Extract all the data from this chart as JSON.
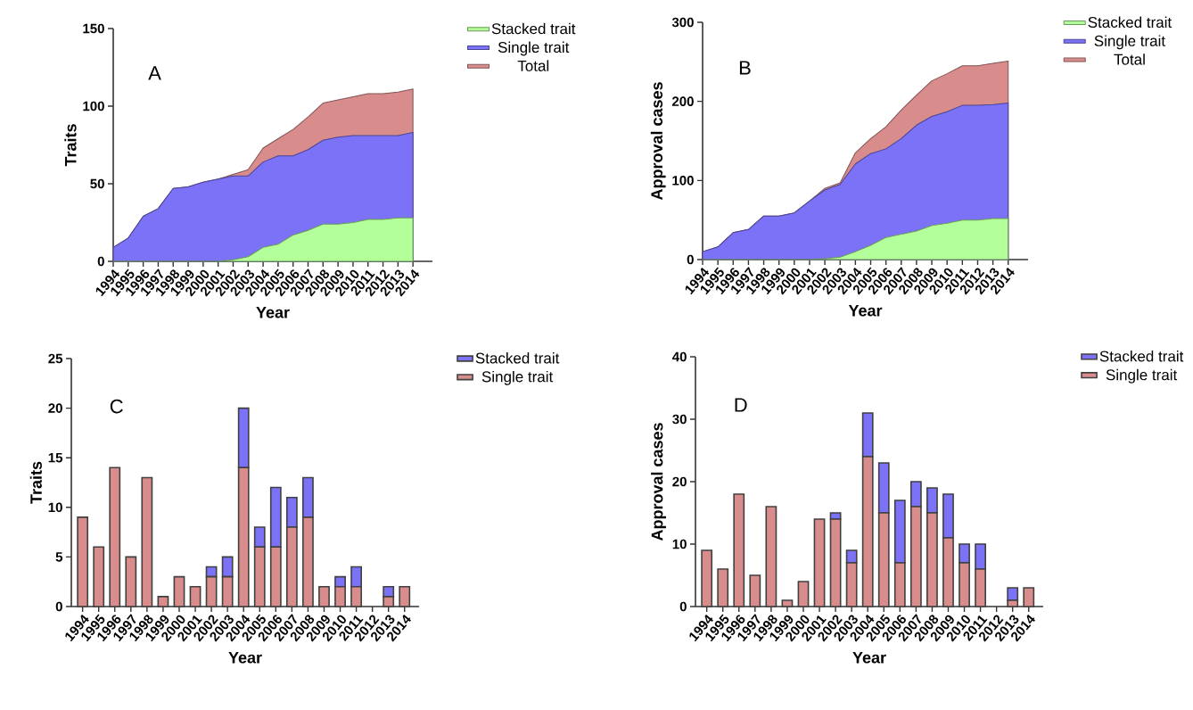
{
  "chart_data": [
    {
      "type": "area",
      "ylabel": "Traits",
      "xlabel": "Year",
      "annotations": [
        "A"
      ],
      "legend": "right",
      "ylim": [
        0,
        150
      ],
      "yticks": [
        0,
        50,
        100,
        150
      ],
      "categories": [
        "1994",
        "1995",
        "1996",
        "1997",
        "1998",
        "1999",
        "2000",
        "2001",
        "2002",
        "2003",
        "2004",
        "2005",
        "2006",
        "2007",
        "2008",
        "2009",
        "2010",
        "2011",
        "2012",
        "2013",
        "2014"
      ],
      "series": [
        {
          "name": "Total",
          "color": "#d98c8c",
          "values": [
            9,
            15,
            29,
            34,
            47,
            48,
            51,
            53,
            56,
            59,
            73,
            79,
            85,
            93,
            102,
            104,
            106,
            108,
            108,
            109,
            111
          ]
        },
        {
          "name": "Single trait",
          "color": "#7b72f7",
          "values": [
            9,
            15,
            29,
            34,
            47,
            48,
            51,
            53,
            55,
            55,
            64,
            68,
            68,
            72,
            78,
            80,
            81,
            81,
            81,
            81,
            83
          ]
        },
        {
          "name": "Stacked trait",
          "color": "#b3ff99",
          "values": [
            0,
            0,
            0,
            0,
            0,
            0,
            0,
            0,
            1,
            3,
            9,
            11,
            17,
            20,
            24,
            24,
            25,
            27,
            27,
            28,
            28
          ]
        }
      ]
    },
    {
      "type": "area",
      "ylabel": "Approval cases",
      "xlabel": "Year",
      "annotations": [
        "B"
      ],
      "legend": "right",
      "ylim": [
        0,
        300
      ],
      "yticks": [
        0,
        100,
        200,
        300
      ],
      "categories": [
        "1994",
        "1995",
        "1996",
        "1997",
        "1998",
        "1999",
        "2000",
        "2001",
        "2002",
        "2003",
        "2004",
        "2005",
        "2006",
        "2007",
        "2008",
        "2009",
        "2010",
        "2011",
        "2012",
        "2013",
        "2014"
      ],
      "series": [
        {
          "name": "Total",
          "color": "#d98c8c",
          "values": [
            10,
            16,
            34,
            38,
            55,
            55,
            59,
            74,
            90,
            97,
            135,
            153,
            168,
            189,
            208,
            226,
            235,
            245,
            245,
            248,
            251
          ]
        },
        {
          "name": "Single trait",
          "color": "#7b72f7",
          "values": [
            10,
            16,
            34,
            38,
            55,
            55,
            59,
            74,
            88,
            95,
            121,
            134,
            140,
            153,
            170,
            181,
            187,
            195,
            195,
            196,
            198
          ]
        },
        {
          "name": "Stacked trait",
          "color": "#b3ff99",
          "values": [
            0,
            0,
            0,
            0,
            0,
            0,
            0,
            0,
            1,
            3,
            10,
            18,
            28,
            32,
            36,
            43,
            46,
            50,
            50,
            52,
            52
          ]
        }
      ]
    },
    {
      "type": "bar",
      "stacked": true,
      "ylabel": "Traits",
      "xlabel": "Year",
      "annotations": [
        "C"
      ],
      "legend": "right",
      "ylim": [
        0,
        25
      ],
      "yticks": [
        0,
        5,
        10,
        15,
        20,
        25
      ],
      "categories": [
        "1994",
        "1995",
        "1996",
        "1997",
        "1998",
        "1999",
        "2000",
        "2001",
        "2002",
        "2003",
        "2004",
        "2005",
        "2006",
        "2007",
        "2008",
        "2009",
        "2010",
        "2011",
        "2012",
        "2013",
        "2014"
      ],
      "series": [
        {
          "name": "Single trait",
          "color": "#d98c8c",
          "values": [
            9,
            6,
            14,
            5,
            13,
            1,
            3,
            2,
            3,
            3,
            14,
            6,
            6,
            8,
            9,
            2,
            2,
            2,
            0,
            1,
            2
          ]
        },
        {
          "name": "Stacked trait",
          "color": "#7b72f7",
          "values": [
            0,
            0,
            0,
            0,
            0,
            0,
            0,
            0,
            1,
            2,
            6,
            2,
            6,
            3,
            4,
            0,
            1,
            2,
            0,
            1,
            0
          ]
        }
      ]
    },
    {
      "type": "bar",
      "stacked": true,
      "ylabel": "Approval cases",
      "xlabel": "Year",
      "annotations": [
        "D"
      ],
      "legend": "right",
      "ylim": [
        0,
        40
      ],
      "yticks": [
        0,
        10,
        20,
        30,
        40
      ],
      "categories": [
        "1994",
        "1995",
        "1996",
        "1997",
        "1998",
        "1999",
        "2000",
        "2001",
        "2002",
        "2003",
        "2004",
        "2005",
        "2006",
        "2007",
        "2008",
        "2009",
        "2010",
        "2011",
        "2012",
        "2013",
        "2014"
      ],
      "series": [
        {
          "name": "Single trait",
          "color": "#d98c8c",
          "values": [
            9,
            6,
            18,
            5,
            16,
            1,
            4,
            14,
            14,
            7,
            24,
            15,
            7,
            16,
            15,
            11,
            7,
            6,
            0,
            1,
            3
          ]
        },
        {
          "name": "Stacked trait",
          "color": "#7b72f7",
          "values": [
            0,
            0,
            0,
            0,
            0,
            0,
            0,
            0,
            1,
            2,
            7,
            8,
            10,
            4,
            4,
            7,
            3,
            4,
            0,
            2,
            0
          ]
        }
      ]
    }
  ]
}
